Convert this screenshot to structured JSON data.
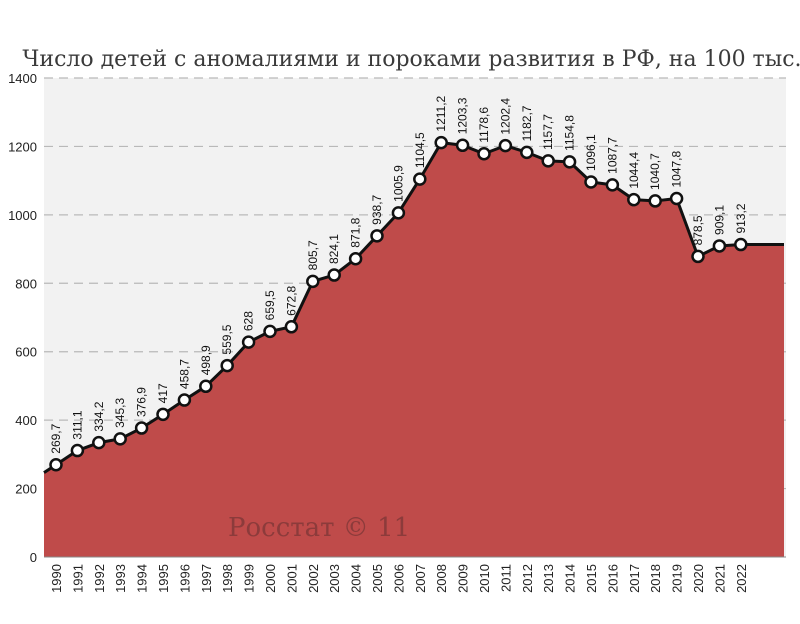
{
  "chart_data": {
    "type": "area",
    "title": "Число детей с аномалиями и пороками развития в РФ, на 100 тыс.",
    "xlabel": "",
    "ylabel": "",
    "ylim": [
      0,
      1400
    ],
    "yticks": [
      0,
      200,
      400,
      600,
      800,
      1000,
      1200,
      1400
    ],
    "grid": true,
    "categories": [
      "1990",
      "1991",
      "1992",
      "1993",
      "1994",
      "1995",
      "1996",
      "1997",
      "1998",
      "1999",
      "2000",
      "2001",
      "2002",
      "2003",
      "2004",
      "2005",
      "2006",
      "2007",
      "2008",
      "2009",
      "2010",
      "2011",
      "2012",
      "2013",
      "2014",
      "2015",
      "2016",
      "2017",
      "2018",
      "2019",
      "2020",
      "2021",
      "2022"
    ],
    "values": [
      269.7,
      311.1,
      334.2,
      345.3,
      376.9,
      417,
      458.7,
      498.9,
      559.5,
      628,
      659.5,
      672.8,
      805.7,
      824.1,
      871.8,
      938.7,
      1005.9,
      1104.5,
      1211.2,
      1203.3,
      1178.6,
      1202.4,
      1182.7,
      1157.7,
      1154.8,
      1096.1,
      1087.7,
      1044.4,
      1040.7,
      1047.8,
      878.5,
      909.1,
      913.2
    ],
    "labels": [
      "269,7",
      "311,1",
      "334,2",
      "345,3",
      "376,9",
      "417",
      "458,7",
      "498,9",
      "559,5",
      "628",
      "659,5",
      "672,8",
      "805,7",
      "824,1",
      "871,8",
      "938,7",
      "1005,9",
      "1104,5",
      "1211,2",
      "1203,3",
      "1178,6",
      "1202,4",
      "1182,7",
      "1157,7",
      "1154,8",
      "1096,1",
      "1087,7",
      "1044,4",
      "1040,7",
      "1047,8",
      "878,5",
      "909,1",
      "913,2"
    ],
    "colors": {
      "fill": "#bf4b4a",
      "line": "#111111",
      "marker_fill": "#ffffff",
      "grid": "#b9b9b9",
      "plot_bg": "#f2f2f2"
    },
    "watermark": "Росстат © 11"
  }
}
